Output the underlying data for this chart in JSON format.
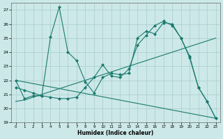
{
  "xlabel": "Humidex (Indice chaleur)",
  "background_color": "#cce8e8",
  "grid_color": "#aacccc",
  "line_color": "#1a7a6e",
  "ylim": [
    19,
    27.5
  ],
  "xlim": [
    -0.5,
    23.5
  ],
  "yticks": [
    19,
    20,
    21,
    22,
    23,
    24,
    25,
    26,
    27
  ],
  "xticks": [
    0,
    1,
    2,
    3,
    4,
    5,
    6,
    7,
    8,
    9,
    10,
    11,
    12,
    13,
    14,
    15,
    16,
    17,
    18,
    19,
    20,
    21,
    22,
    23
  ],
  "curve1_x": [
    0,
    1,
    2,
    3,
    4,
    5,
    6,
    7,
    8,
    9,
    10,
    11,
    12,
    13,
    14,
    15,
    16,
    17,
    18,
    19,
    20,
    21,
    22,
    23
  ],
  "curve1_y": [
    22.0,
    20.7,
    20.9,
    20.9,
    25.1,
    27.2,
    24.0,
    23.4,
    21.9,
    21.1,
    22.2,
    22.5,
    22.4,
    22.5,
    25.0,
    25.5,
    25.3,
    26.1,
    26.0,
    25.0,
    23.6,
    21.5,
    20.5,
    19.3
  ],
  "curve2_x": [
    0,
    1,
    2,
    3,
    4,
    5,
    6,
    7,
    8,
    9,
    10,
    11,
    12,
    13,
    14,
    15,
    16,
    17,
    18,
    19,
    20,
    21,
    22,
    23
  ],
  "curve2_y": [
    20.5,
    20.6,
    20.8,
    21.0,
    21.2,
    21.4,
    21.6,
    21.8,
    22.0,
    22.2,
    22.4,
    22.6,
    22.8,
    23.0,
    23.2,
    23.4,
    23.6,
    23.8,
    24.0,
    24.2,
    24.4,
    24.6,
    24.8,
    25.0
  ],
  "curve3_x": [
    0,
    23
  ],
  "curve3_y": [
    22.0,
    19.3
  ],
  "curve4_x": [
    0,
    1,
    2,
    3,
    4,
    5,
    6,
    7,
    8,
    9,
    10,
    11,
    12,
    13,
    14,
    15,
    16,
    17,
    18,
    19,
    20,
    21,
    22,
    23
  ],
  "curve4_y": [
    21.5,
    21.3,
    21.1,
    20.9,
    20.8,
    20.7,
    20.7,
    20.8,
    21.5,
    22.2,
    23.1,
    22.3,
    22.2,
    22.8,
    24.5,
    25.2,
    25.9,
    26.2,
    25.9,
    25.0,
    23.7,
    21.5,
    20.5,
    19.3
  ]
}
